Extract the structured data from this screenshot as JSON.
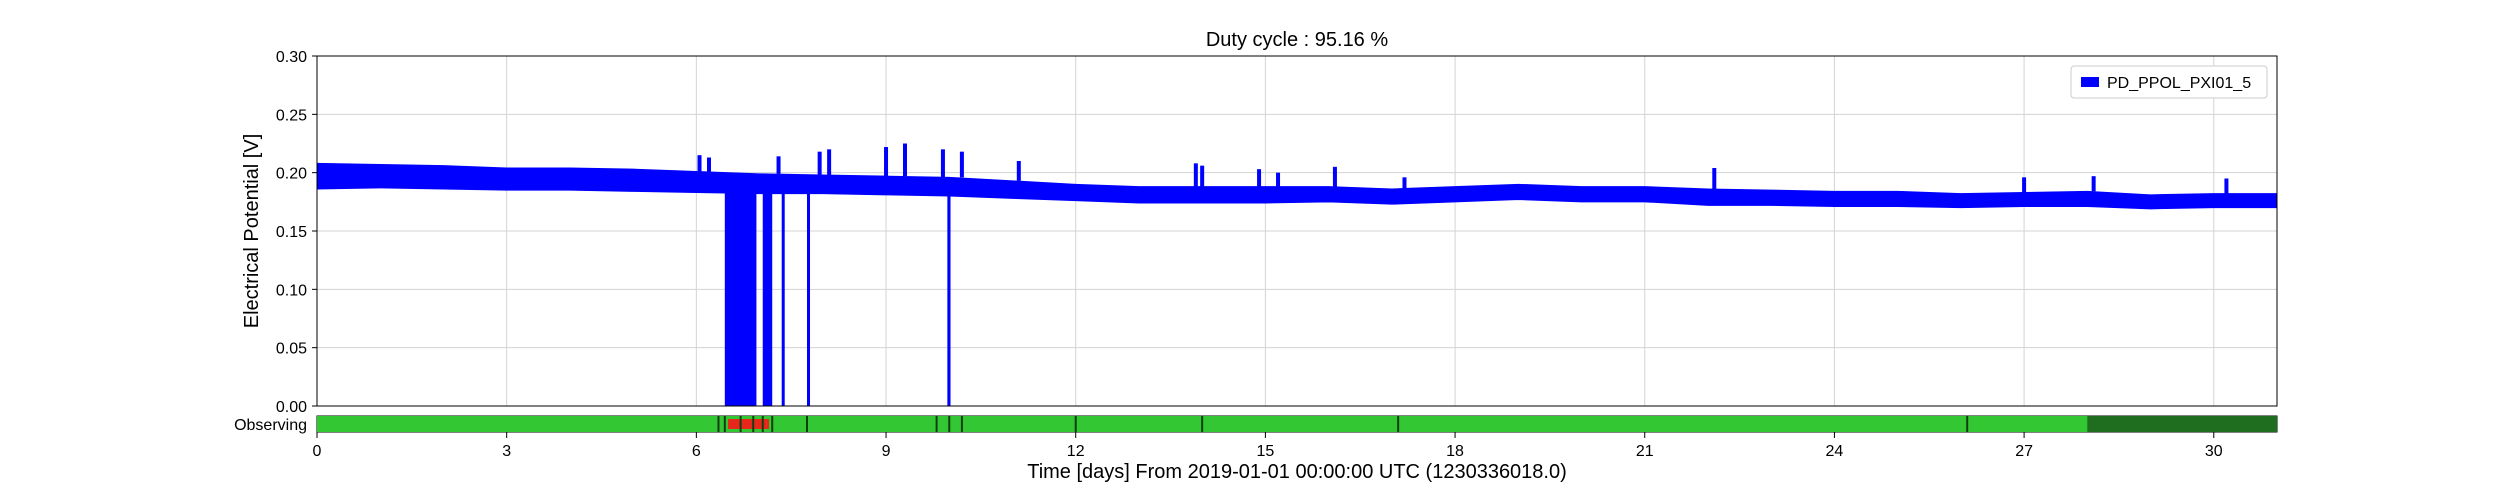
{
  "chart_data": {
    "type": "line",
    "title": "Duty cycle : 95.16 %",
    "xlabel": "Time [days] From 2019-01-01 00:00:00 UTC (1230336018.0)",
    "ylabel": "Electrical Potential [V]",
    "xlim": [
      0,
      31
    ],
    "ylim": [
      0,
      0.3
    ],
    "x_ticks": [
      "0",
      "3",
      "6",
      "9",
      "12",
      "15",
      "18",
      "21",
      "24",
      "27",
      "30"
    ],
    "y_ticks": [
      "0.00",
      "0.05",
      "0.10",
      "0.15",
      "0.20",
      "0.25",
      "0.30"
    ],
    "grid": true,
    "legend_position": "top-right",
    "series": [
      {
        "name": "PD_PPOL_PXI01_5",
        "color": "#0000ff",
        "band_x": [
          0,
          1,
          2,
          3,
          4,
          5,
          6,
          7,
          8,
          9,
          10,
          11,
          12,
          13,
          14,
          15,
          16,
          17,
          18,
          19,
          20,
          21,
          22,
          23,
          24,
          25,
          26,
          27,
          28,
          29,
          30,
          31
        ],
        "band_upper": [
          0.208,
          0.207,
          0.206,
          0.204,
          0.204,
          0.203,
          0.201,
          0.199,
          0.198,
          0.197,
          0.196,
          0.193,
          0.19,
          0.188,
          0.188,
          0.188,
          0.188,
          0.186,
          0.188,
          0.19,
          0.188,
          0.188,
          0.186,
          0.185,
          0.184,
          0.184,
          0.182,
          0.183,
          0.184,
          0.181,
          0.182,
          0.182
        ],
        "band_lower": [
          0.186,
          0.187,
          0.186,
          0.185,
          0.185,
          0.184,
          0.183,
          0.182,
          0.182,
          0.181,
          0.18,
          0.178,
          0.176,
          0.174,
          0.174,
          0.174,
          0.175,
          0.173,
          0.175,
          0.177,
          0.175,
          0.175,
          0.172,
          0.172,
          0.171,
          0.171,
          0.17,
          0.171,
          0.171,
          0.169,
          0.17,
          0.17
        ],
        "spikes": [
          {
            "x": 6.05,
            "y": 0.215
          },
          {
            "x": 6.2,
            "y": 0.213
          },
          {
            "x": 7.3,
            "y": 0.214
          },
          {
            "x": 7.95,
            "y": 0.218
          },
          {
            "x": 8.1,
            "y": 0.22
          },
          {
            "x": 9.0,
            "y": 0.222
          },
          {
            "x": 9.3,
            "y": 0.225
          },
          {
            "x": 9.9,
            "y": 0.22
          },
          {
            "x": 10.2,
            "y": 0.218
          },
          {
            "x": 11.1,
            "y": 0.21
          },
          {
            "x": 13.9,
            "y": 0.208
          },
          {
            "x": 14.0,
            "y": 0.206
          },
          {
            "x": 14.9,
            "y": 0.203
          },
          {
            "x": 15.2,
            "y": 0.2
          },
          {
            "x": 16.1,
            "y": 0.205
          },
          {
            "x": 17.2,
            "y": 0.196
          },
          {
            "x": 22.1,
            "y": 0.204
          },
          {
            "x": 27.0,
            "y": 0.196
          },
          {
            "x": 28.1,
            "y": 0.197
          },
          {
            "x": 30.2,
            "y": 0.195
          }
        ],
        "dropouts": [
          {
            "x0": 6.45,
            "x1": 6.95,
            "y": 0.0
          },
          {
            "x0": 7.05,
            "x1": 7.2,
            "y": 0.0
          },
          {
            "x0": 7.35,
            "x1": 7.38,
            "y": 0.0
          },
          {
            "x0": 7.75,
            "x1": 7.78,
            "y": 0.0
          },
          {
            "x0": 9.97,
            "x1": 10.02,
            "y": 0.0
          }
        ]
      }
    ],
    "segments": {
      "label": "Observing",
      "colors": {
        "active": "#33c733",
        "flagged": "#e8271c",
        "dark": "#1f6e1f"
      },
      "active": [
        [
          0,
          31
        ]
      ],
      "flagged": [
        [
          6.5,
          7.15
        ]
      ],
      "dark": [
        [
          28.0,
          31
        ]
      ],
      "markers": [
        6.35,
        6.45,
        6.7,
        6.9,
        7.05,
        7.2,
        7.75,
        9.8,
        10.0,
        10.2,
        12.0,
        14.0,
        17.1,
        26.1
      ]
    }
  }
}
